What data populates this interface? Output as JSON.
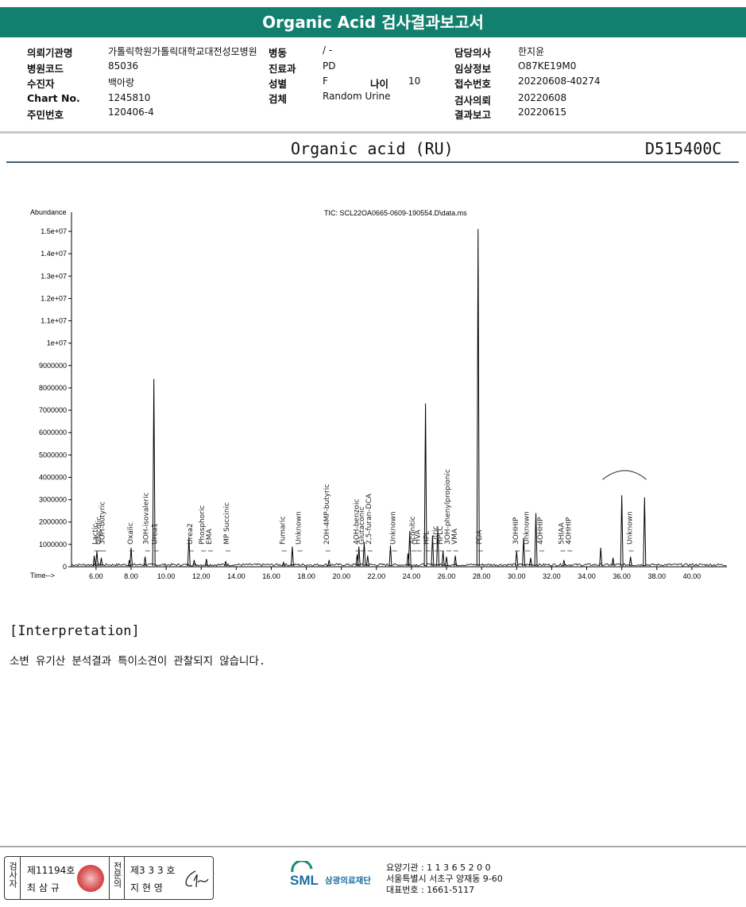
{
  "header": {
    "title": "Organic Acid 검사결과보고서"
  },
  "info": {
    "institution_label": "의뢰기관명",
    "institution": "가톨릭학원가톨릭대학교대전성모병원",
    "ward_label": "병동",
    "ward": "/ -",
    "doctor_label": "담당의사",
    "doctor": "한지윤",
    "hospital_code_label": "병원코드",
    "hospital_code": "85036",
    "dept_label": "진료과",
    "dept": "PD",
    "clinical_label": "임상정보",
    "clinical": "O87KE19M0",
    "recipient_label": "수진자",
    "recipient": "백아랑",
    "sex_label": "성별",
    "sex": "F",
    "age_label": "나이",
    "age": "10",
    "receipt_label": "접수번호",
    "receipt": "20220608-40274",
    "chart_label": "Chart No.",
    "chart": "1245810",
    "specimen_label": "검체",
    "specimen": "Random Urine",
    "request_label": "검사의뢰",
    "request": "20220608",
    "id_label": "주민번호",
    "id": "120406-4",
    "report_label": "결과보고",
    "report": "20220615"
  },
  "report": {
    "title": "Organic acid (RU)",
    "code": "D515400C"
  },
  "chart_data": {
    "type": "line",
    "title": "TIC: SCL22OA0665-0609-190554.D\\data.ms",
    "ylabel": "Abundance",
    "xlabel": "Time-->",
    "xlim": [
      4.6,
      42.0
    ],
    "ylim": [
      0,
      15500000
    ],
    "x_ticks": [
      "6.00",
      "8.00",
      "10.00",
      "12.00",
      "14.00",
      "16.00",
      "18.00",
      "20.00",
      "22.00",
      "24.00",
      "26.00",
      "28.00",
      "30.00",
      "32.00",
      "34.00",
      "36.00",
      "38.00",
      "40.00"
    ],
    "x_tick_values": [
      6,
      8,
      10,
      12,
      14,
      16,
      18,
      20,
      22,
      24,
      26,
      28,
      30,
      32,
      34,
      36,
      38,
      40
    ],
    "y_ticks": [
      "1.5e+07",
      "1.4e+07",
      "1.3e+07",
      "1.2e+07",
      "1.1e+07",
      "1e+07",
      "9000000",
      "8000000",
      "7000000",
      "6000000",
      "5000000",
      "4000000",
      "3000000",
      "2000000",
      "1000000",
      "0"
    ],
    "y_tick_values": [
      15000000,
      14000000,
      13000000,
      12000000,
      11000000,
      10000000,
      9000000,
      8000000,
      7000000,
      6000000,
      5000000,
      4000000,
      3000000,
      2000000,
      1000000,
      0
    ],
    "peaks": [
      {
        "x": 5.9,
        "y": 500000
      },
      {
        "x": 6.05,
        "y": 700000
      },
      {
        "x": 6.3,
        "y": 400000
      },
      {
        "x": 7.9,
        "y": 300000
      },
      {
        "x": 8.0,
        "y": 850000
      },
      {
        "x": 8.8,
        "y": 450000
      },
      {
        "x": 9.3,
        "y": 8400000
      },
      {
        "x": 11.3,
        "y": 1300000
      },
      {
        "x": 11.6,
        "y": 300000
      },
      {
        "x": 12.3,
        "y": 350000
      },
      {
        "x": 13.4,
        "y": 250000
      },
      {
        "x": 16.7,
        "y": 200000
      },
      {
        "x": 17.2,
        "y": 900000
      },
      {
        "x": 19.3,
        "y": 300000
      },
      {
        "x": 20.9,
        "y": 550000
      },
      {
        "x": 21.0,
        "y": 900000
      },
      {
        "x": 21.3,
        "y": 1100000
      },
      {
        "x": 21.5,
        "y": 500000
      },
      {
        "x": 22.8,
        "y": 950000
      },
      {
        "x": 23.8,
        "y": 600000
      },
      {
        "x": 23.9,
        "y": 1600000
      },
      {
        "x": 24.8,
        "y": 7300000
      },
      {
        "x": 25.2,
        "y": 1400000
      },
      {
        "x": 25.5,
        "y": 1700000
      },
      {
        "x": 25.8,
        "y": 700000
      },
      {
        "x": 26.0,
        "y": 450000
      },
      {
        "x": 26.5,
        "y": 500000
      },
      {
        "x": 27.8,
        "y": 15100000
      },
      {
        "x": 30.0,
        "y": 700000
      },
      {
        "x": 30.4,
        "y": 1300000
      },
      {
        "x": 30.8,
        "y": 400000
      },
      {
        "x": 31.1,
        "y": 2400000
      },
      {
        "x": 32.7,
        "y": 300000
      },
      {
        "x": 34.8,
        "y": 850000
      },
      {
        "x": 35.5,
        "y": 400000
      },
      {
        "x": 36.0,
        "y": 3200000
      },
      {
        "x": 36.5,
        "y": 450000
      },
      {
        "x": 37.3,
        "y": 3100000
      }
    ],
    "annotations": [
      {
        "text": "Lactic",
        "x": 5.9
      },
      {
        "text": "Glycolic",
        "x": 6.1
      },
      {
        "text": "3OH-butyric",
        "x": 6.3
      },
      {
        "text": "Oxalic",
        "x": 7.9
      },
      {
        "text": "3OH-isovaleric",
        "x": 8.8
      },
      {
        "text": "Urea1",
        "x": 9.3
      },
      {
        "text": "Urea2",
        "x": 11.3
      },
      {
        "text": "Phosphoric",
        "x": 12.0
      },
      {
        "text": "EMA",
        "x": 12.4
      },
      {
        "text": "MP Succinic",
        "x": 13.4
      },
      {
        "text": "Fumaric",
        "x": 16.6
      },
      {
        "text": "Unknown",
        "x": 17.5
      },
      {
        "text": "2OH-4MP-butyric",
        "x": 19.1
      },
      {
        "text": "4OH-benzoic",
        "x": 20.8
      },
      {
        "text": "Glutaconic",
        "x": 21.1
      },
      {
        "text": "2,5-furan-DCA",
        "x": 21.5
      },
      {
        "text": "Unknown",
        "x": 22.9
      },
      {
        "text": "Aconitic",
        "x": 24.0
      },
      {
        "text": "HVA",
        "x": 24.3
      },
      {
        "text": "HPL",
        "x": 24.8
      },
      {
        "text": "Citric",
        "x": 25.3
      },
      {
        "text": "HPLC",
        "x": 25.6
      },
      {
        "text": "3OH-phenylpropionic",
        "x": 26.0
      },
      {
        "text": "VMA",
        "x": 26.4
      },
      {
        "text": "PDA",
        "x": 27.8
      },
      {
        "text": "3OHHIP",
        "x": 29.9
      },
      {
        "text": "Unknown",
        "x": 30.5
      },
      {
        "text": "4OHHIP",
        "x": 31.3
      },
      {
        "text": "5HIAA",
        "x": 32.5
      },
      {
        "text": "4OHHIP",
        "x": 32.9
      },
      {
        "text": "Unknown",
        "x": 36.4
      }
    ]
  },
  "interpretation": {
    "title": "[Interpretation]",
    "text": "소변 유기산 분석결과 특이소견이 관찰되지 않습니다."
  },
  "footer": {
    "col1_label": "검사자",
    "license1": "제11194호",
    "name1": "최 삼 규",
    "col2_label": "전문의",
    "license2": "제3 3 3 호",
    "name2": "지 현 영",
    "sml_logo": "SML",
    "org_name": "삼광의료재단",
    "care_no": "요양기관 : 1 1 3 6 5 2 0 0",
    "address": "서울특별시 서초구 양재동 9-60",
    "phone": "대표번호 : 1661-5117"
  },
  "colors": {
    "header": "#13806f",
    "title_line": "#3e5f78"
  }
}
